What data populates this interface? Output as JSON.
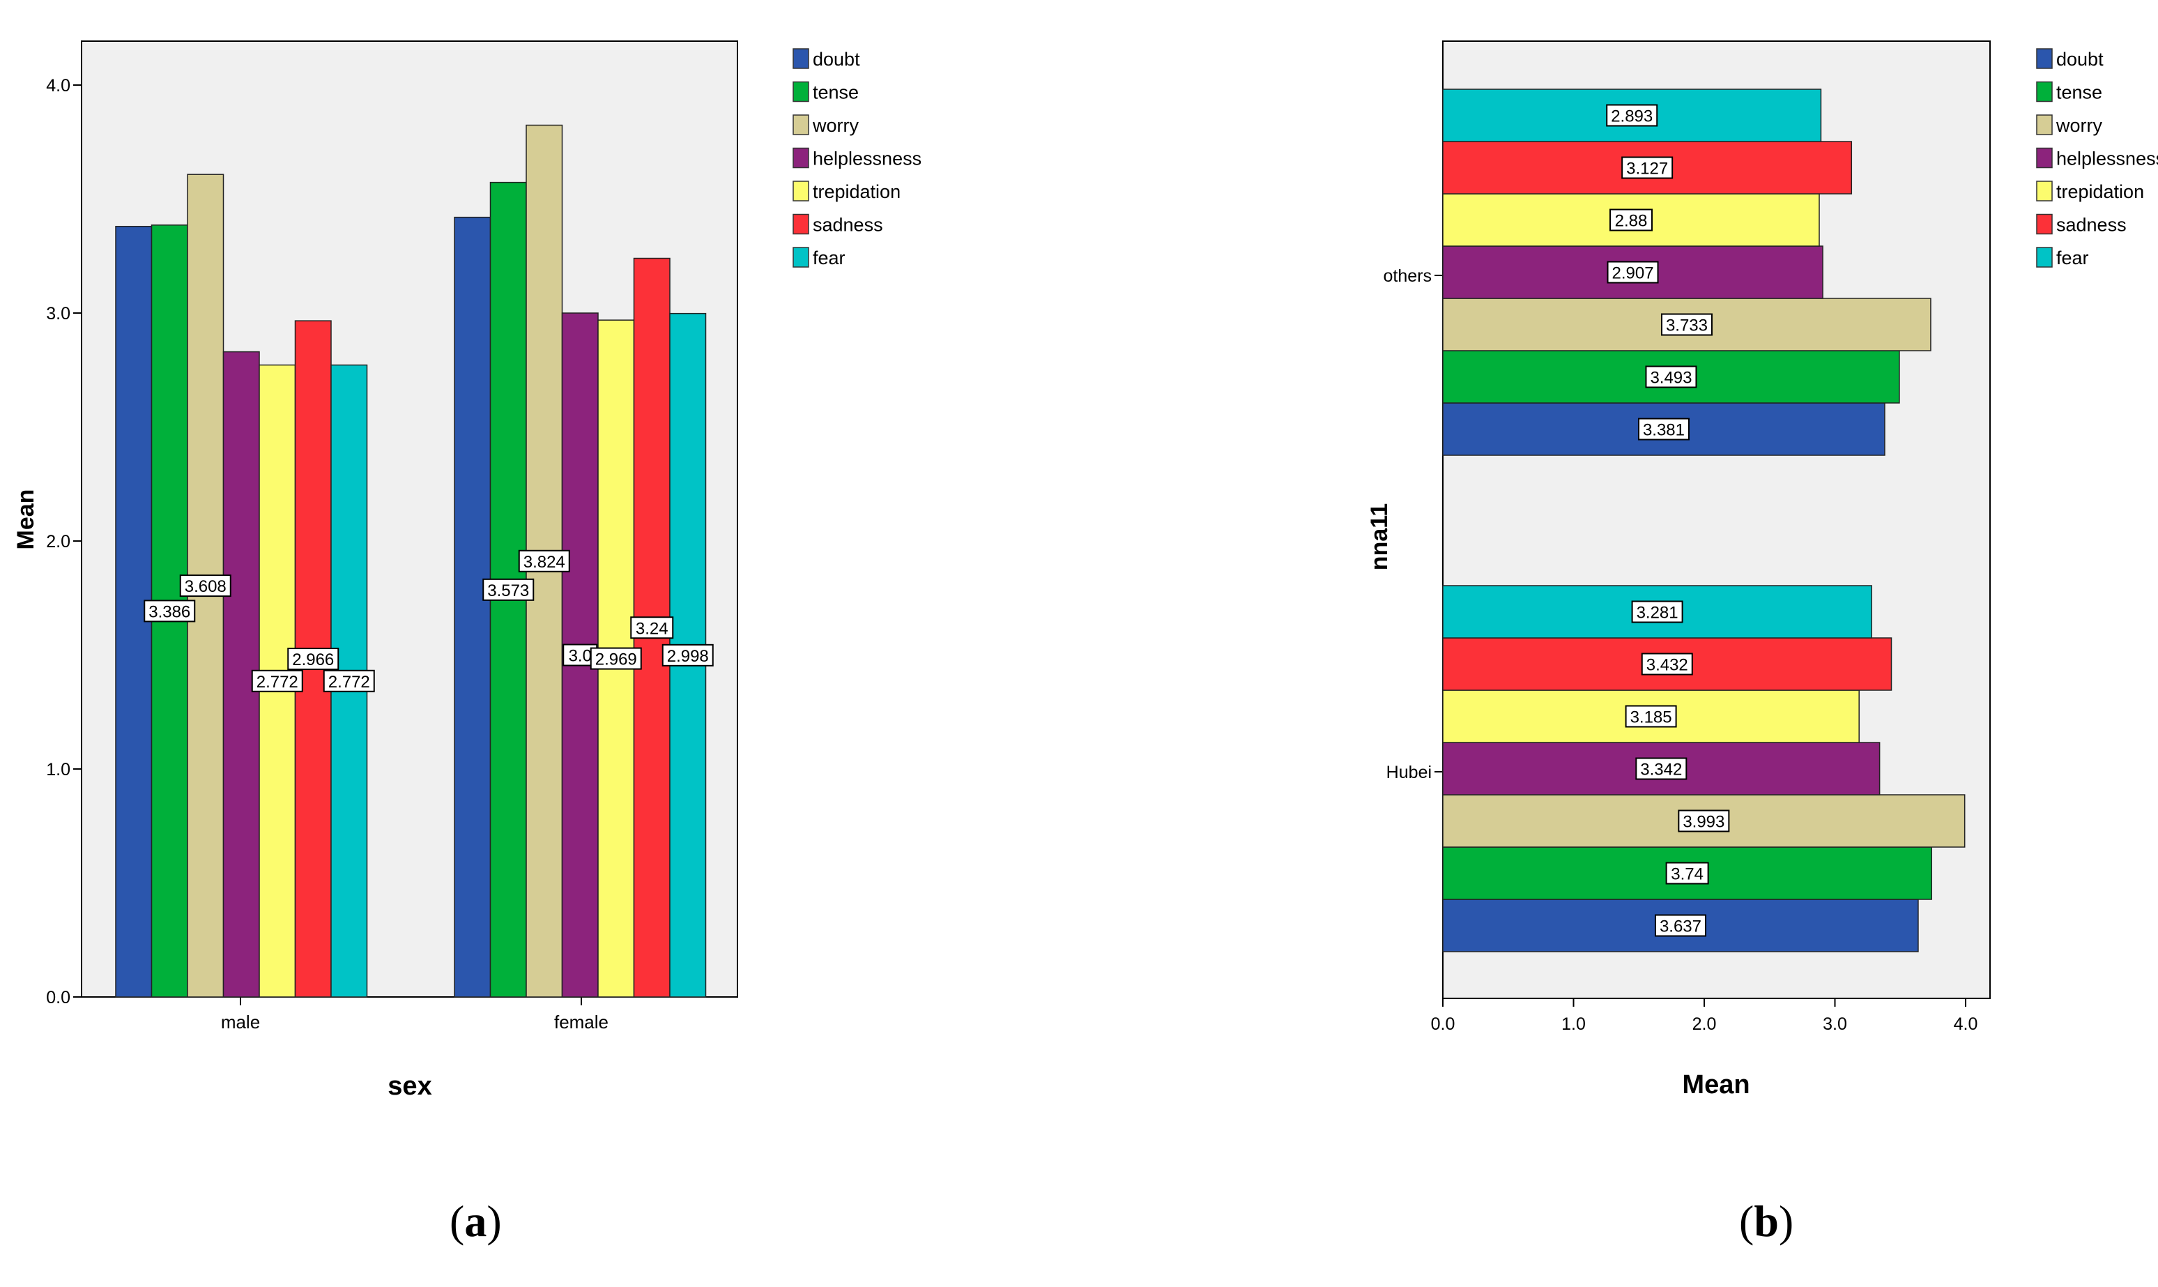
{
  "figure": {
    "caption_a": {
      "open": "(",
      "letter": "a",
      "close": ")"
    },
    "caption_b": {
      "open": "(",
      "letter": "b",
      "close": ")"
    }
  },
  "legend": [
    {
      "name": "doubt",
      "color": "#2b56ad"
    },
    {
      "name": "tense",
      "color": "#00b03a"
    },
    {
      "name": "worry",
      "color": "#d6cd95"
    },
    {
      "name": "helplessness",
      "color": "#8c237c"
    },
    {
      "name": "trepidation",
      "color": "#fcfc6e"
    },
    {
      "name": "sadness",
      "color": "#fc3138"
    },
    {
      "name": "fear",
      "color": "#00c3c6"
    }
  ],
  "chart_data": [
    {
      "type": "bar",
      "orientation": "vertical",
      "categories": [
        "male",
        "female"
      ],
      "xlabel": "sex",
      "ylabel": "Mean",
      "ylim": [
        0,
        4
      ],
      "ticks": [
        "0.0",
        "1.0",
        "2.0",
        "3.0",
        "4.0"
      ],
      "legend_position": "top-right",
      "series": [
        {
          "name": "doubt",
          "values": [
            3.38,
            3.42
          ],
          "labels": [
            null,
            null
          ]
        },
        {
          "name": "tense",
          "values": [
            3.386,
            3.573
          ],
          "labels": [
            "3.386",
            "3.573"
          ]
        },
        {
          "name": "worry",
          "values": [
            3.608,
            3.824
          ],
          "labels": [
            "3.608",
            "3.824"
          ]
        },
        {
          "name": "helplessness",
          "values": [
            2.83,
            3.0
          ],
          "labels": [
            null,
            "3.0"
          ]
        },
        {
          "name": "trepidation",
          "values": [
            2.772,
            2.969
          ],
          "labels": [
            "2.772",
            "2.969"
          ]
        },
        {
          "name": "sadness",
          "values": [
            2.966,
            3.24
          ],
          "labels": [
            "2.966",
            "3.24"
          ]
        },
        {
          "name": "fear",
          "values": [
            2.772,
            2.998
          ],
          "labels": [
            "2.772",
            "2.998"
          ]
        }
      ]
    },
    {
      "type": "bar",
      "orientation": "horizontal",
      "categories": [
        "others",
        "Hubei"
      ],
      "xlabel": "Mean",
      "ylabel": "nna11",
      "xlim": [
        0,
        4.2
      ],
      "ticks": [
        "0.0",
        "1.0",
        "2.0",
        "3.0",
        "4.0"
      ],
      "legend_position": "top-right",
      "series": [
        {
          "name": "doubt",
          "values": [
            3.381,
            3.637
          ],
          "labels": [
            "3.381",
            "3.637"
          ]
        },
        {
          "name": "tense",
          "values": [
            3.493,
            3.74
          ],
          "labels": [
            "3.493",
            "3.74"
          ]
        },
        {
          "name": "worry",
          "values": [
            3.733,
            3.993
          ],
          "labels": [
            "3.733",
            "3.993"
          ]
        },
        {
          "name": "helplessness",
          "values": [
            2.907,
            3.342
          ],
          "labels": [
            "2.907",
            "3.342"
          ]
        },
        {
          "name": "trepidation",
          "values": [
            2.88,
            3.185
          ],
          "labels": [
            "2.88",
            "3.185"
          ]
        },
        {
          "name": "sadness",
          "values": [
            3.127,
            3.432
          ],
          "labels": [
            "3.127",
            "3.432"
          ]
        },
        {
          "name": "fear",
          "values": [
            2.893,
            3.281
          ],
          "labels": [
            "2.893",
            "3.281"
          ]
        }
      ]
    }
  ]
}
